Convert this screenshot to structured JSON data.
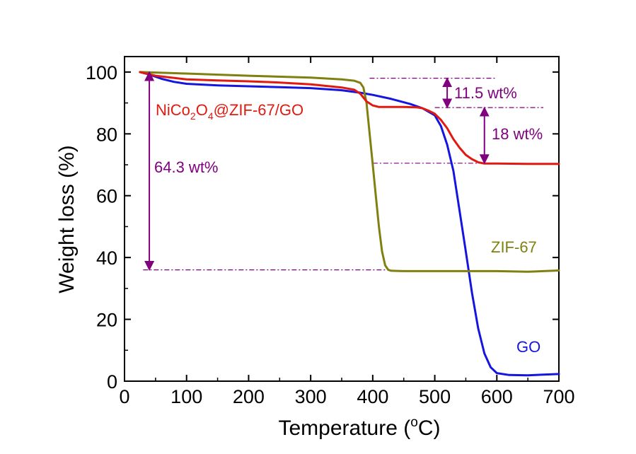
{
  "chart_data": {
    "type": "line",
    "title": "",
    "xlabel": "Temperature (",
    "xlabel_sup": "o",
    "xlabel_suffix": "C)",
    "ylabel": "Weight loss (%)",
    "xlim": [
      0,
      700
    ],
    "ylim": [
      0,
      105
    ],
    "xticks": [
      0,
      100,
      200,
      300,
      400,
      500,
      600,
      700
    ],
    "yticks": [
      0,
      20,
      40,
      60,
      80,
      100
    ],
    "grid": false,
    "series": [
      {
        "name": "GO",
        "color": "#1515e0",
        "x": [
          25,
          40,
          60,
          80,
          100,
          150,
          200,
          250,
          300,
          350,
          380,
          400,
          430,
          460,
          480,
          500,
          510,
          520,
          530,
          540,
          550,
          560,
          570,
          580,
          590,
          600,
          620,
          650,
          700
        ],
        "y": [
          100,
          99.2,
          97.8,
          96.8,
          96.2,
          95.7,
          95.4,
          95.1,
          94.8,
          94.1,
          93.3,
          92.6,
          91.3,
          89.7,
          88.3,
          86,
          82.5,
          76.5,
          68,
          55,
          42,
          28.5,
          17,
          9,
          4.5,
          2.6,
          2.0,
          1.9,
          2.3
        ]
      },
      {
        "name": "ZIF-67",
        "color": "#808010",
        "x": [
          25,
          100,
          200,
          300,
          350,
          370,
          380,
          385,
          390,
          395,
          400,
          405,
          410,
          415,
          420,
          425,
          430,
          450,
          500,
          600,
          650,
          700
        ],
        "y": [
          100,
          99.5,
          98.8,
          98.2,
          97.6,
          97.2,
          96.5,
          95,
          90,
          80,
          70,
          60,
          50,
          42,
          37.5,
          36.0,
          35.7,
          35.6,
          35.6,
          35.6,
          35.4,
          35.8
        ]
      },
      {
        "name": "NiCo2O4@ZIF-67/GO",
        "color": "#e01a10",
        "x": [
          25,
          50,
          100,
          150,
          200,
          250,
          300,
          350,
          370,
          380,
          390,
          400,
          410,
          430,
          450,
          470,
          480,
          490,
          500,
          510,
          520,
          530,
          540,
          550,
          560,
          570,
          580,
          600,
          650,
          700
        ],
        "y": [
          100,
          98.8,
          97.6,
          97.3,
          97.0,
          96.6,
          96.0,
          95.0,
          94.3,
          93.0,
          90.5,
          89.2,
          88.7,
          88.7,
          88.7,
          88.6,
          88.3,
          87.5,
          86.5,
          84.5,
          81.8,
          78.3,
          75.5,
          73.2,
          71.8,
          70.8,
          70.4,
          70.4,
          70.3,
          70.3
        ]
      }
    ],
    "series_labels": [
      {
        "series": 2,
        "text_main": "NiCo",
        "sub1": "2",
        "text_mid": "O",
        "sub2": "4",
        "text_end": "@ZIF-67/GO",
        "color": "#e01a10"
      },
      {
        "series": 1,
        "text": "ZIF-67",
        "color": "#808010"
      },
      {
        "series": 0,
        "text": "GO",
        "color": "#1515e0"
      }
    ],
    "annotations": [
      {
        "text": "64.3 wt%",
        "color": "#800080"
      },
      {
        "text": "11.5 wt%",
        "color": "#800080"
      },
      {
        "text": "18 wt%",
        "color": "#800080"
      }
    ],
    "reference_lines": [
      {
        "y": 98,
        "x_from": 395,
        "x_to": 600
      },
      {
        "y": 88.5,
        "x_from": 500,
        "x_to": 675
      },
      {
        "y": 70.5,
        "x_from": 400,
        "x_to": 590
      },
      {
        "y": 36,
        "x_from": 30,
        "x_to": 420
      }
    ],
    "arrows": [
      {
        "x": 40,
        "y_from": 100,
        "y_to": 36
      },
      {
        "x": 520,
        "y_from": 98,
        "y_to": 88.5
      },
      {
        "x": 580,
        "y_from": 88.5,
        "y_to": 70.5
      }
    ],
    "accent_color": "#800080"
  }
}
